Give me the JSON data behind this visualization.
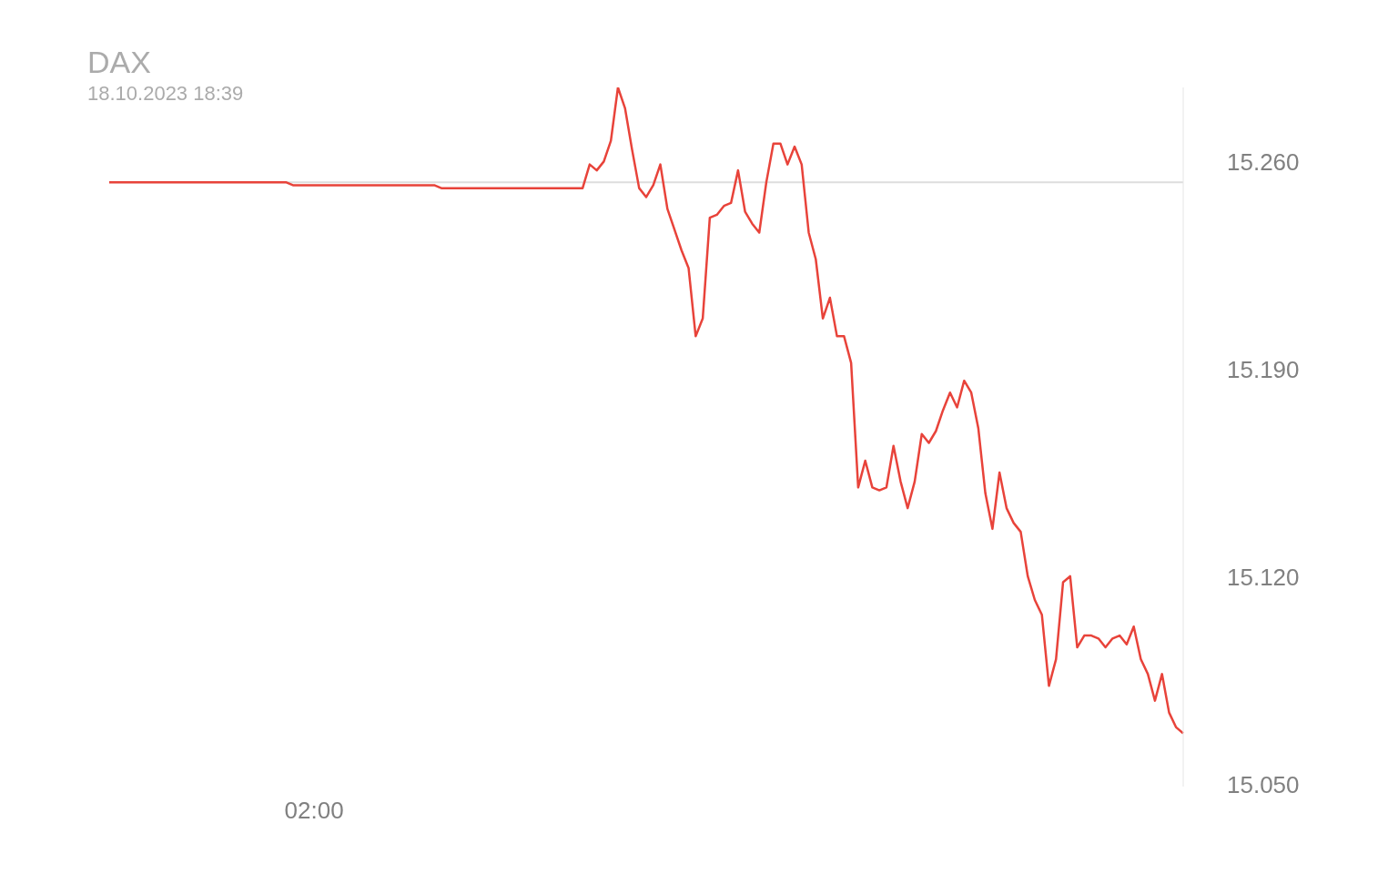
{
  "chart_data": {
    "type": "line",
    "title": "DAX",
    "subtitle": "18.10.2023 18:39",
    "categories": [
      null,
      null,
      null,
      null,
      null,
      null,
      null,
      null,
      null,
      null,
      null,
      null,
      null,
      null,
      null,
      null,
      null,
      null,
      null,
      null,
      null,
      null,
      null,
      null,
      null,
      null,
      null,
      null,
      null,
      "02:00",
      null,
      null,
      null,
      null,
      null,
      null,
      null,
      null,
      null,
      null,
      null,
      null,
      null,
      null,
      null,
      null,
      null,
      null,
      null,
      null,
      null,
      null,
      null,
      null,
      null,
      null,
      null,
      null,
      null,
      null,
      null,
      null,
      null,
      null,
      null,
      null,
      null,
      null,
      null,
      null,
      null,
      null,
      null,
      null,
      null,
      null,
      null,
      null,
      null,
      null,
      null,
      null,
      null,
      null,
      null,
      null,
      null,
      null,
      null,
      null,
      null,
      null,
      null,
      null,
      null,
      null,
      null,
      null,
      null,
      null,
      null,
      null,
      null,
      null,
      null,
      null,
      null,
      null,
      null,
      null,
      null,
      null,
      null,
      null,
      null,
      null,
      null,
      null,
      null,
      null,
      null,
      null,
      null,
      null,
      null,
      null,
      null,
      null,
      null,
      null,
      null,
      null,
      null,
      null,
      null,
      null,
      null,
      null,
      null,
      null,
      null,
      null,
      null,
      null,
      null,
      null,
      null,
      null,
      null,
      null,
      null,
      null,
      null
    ],
    "series": [
      {
        "color": "#e8433a",
        "values": [
          15254,
          15254,
          15254,
          15254,
          15254,
          15254,
          15254,
          15254,
          15254,
          15254,
          15254,
          15254,
          15254,
          15254,
          15254,
          15254,
          15254,
          15254,
          15254,
          15254,
          15254,
          15254,
          15254,
          15254,
          15254,
          15254,
          15253,
          15253,
          15253,
          15253,
          15253,
          15253,
          15253,
          15253,
          15253,
          15253,
          15253,
          15253,
          15253,
          15253,
          15253,
          15253,
          15253,
          15253,
          15253,
          15253,
          15253,
          15252,
          15252,
          15252,
          15252,
          15252,
          15252,
          15252,
          15252,
          15252,
          15252,
          15252,
          15252,
          15252,
          15252,
          15252,
          15252,
          15252,
          15252,
          15252,
          15252,
          15252,
          15260,
          15258,
          15261,
          15268,
          15286,
          15279,
          15265,
          15252,
          15249,
          15253,
          15260,
          15245,
          15238,
          15231,
          15225,
          15202,
          15208,
          15242,
          15243,
          15246,
          15247,
          15258,
          15244,
          15240,
          15237,
          15254,
          15267,
          15267,
          15260,
          15266,
          15260,
          15237,
          15228,
          15208,
          15215,
          15202,
          15202,
          15193,
          15151,
          15160,
          15151,
          15150,
          15151,
          15165,
          15153,
          15144,
          15153,
          15169,
          15166,
          15170,
          15177,
          15183,
          15178,
          15187,
          15183,
          15171,
          15149,
          15137,
          15156,
          15144,
          15139,
          15136,
          15121,
          15113,
          15108,
          15084,
          15093,
          15119,
          15121,
          15097,
          15101,
          15101,
          15100,
          15097,
          15100,
          15101,
          15098,
          15104,
          15093,
          15088,
          15079,
          15088,
          15075,
          15070,
          15068
        ]
      }
    ],
    "ylim": [
      15050,
      15286
    ],
    "yticks": [
      {
        "value": 15050,
        "label": "15.050"
      },
      {
        "value": 15120,
        "label": "15.120"
      },
      {
        "value": 15190,
        "label": "15.190"
      },
      {
        "value": 15260,
        "label": "15.260"
      }
    ],
    "ref_lines": [
      {
        "axis": "y",
        "value": 15254,
        "color": "#dddddd"
      }
    ]
  }
}
